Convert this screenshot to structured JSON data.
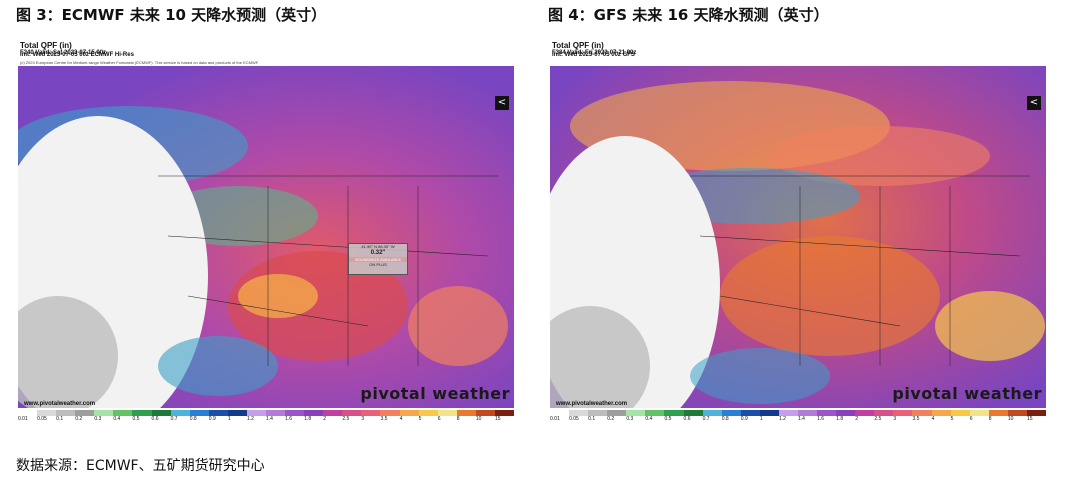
{
  "figures": [
    {
      "title": "图 3：ECMWF 未来 10 天降水预测（英寸）",
      "header_line1": "Total QPF (in)",
      "header_line2": "F240 Valid: Sat 2023-07-15 00z",
      "header_line3": "(c) 2023 European Centre for Medium-range Weather Forecasts (ECMWF). This service is based on data and products of the ECMWF.",
      "init": "Init: Wed 2023-07-05 00z ECMWF Hi-Res",
      "probe_coord": "41.90° N 86.30° W",
      "probe_value": "0.32\"",
      "probe_note": "SOUNDINGS AVAILABLE",
      "probe_note2": "ON PLUS"
    },
    {
      "title": "图 4：GFS 未来 16 天降水预测（英寸）",
      "header_line1": "Total QPF (in)",
      "header_line2": "F384 Valid: Fri 2023-07-21 00z",
      "init": "Init: Wed 2023-07-05 00z GFS"
    }
  ],
  "url": "www.pivotalweather.com",
  "brand": "pivotal weather",
  "scale_labels": [
    "0.01",
    "0.05",
    "0.1",
    "0.2",
    "0.3",
    "0.4",
    "0.5",
    "0.6",
    "0.7",
    "0.8",
    "0.9",
    "1",
    "1.2",
    "1.4",
    "1.6",
    "1.8",
    "2",
    "2.5",
    "3",
    "3.5",
    "4",
    "5",
    "6",
    "8",
    "10",
    "15"
  ],
  "scale_colors": [
    "#ffffff",
    "#d9d9d9",
    "#bdbdbd",
    "#9e9e9e",
    "#a6e3a6",
    "#66c266",
    "#2e9e4f",
    "#1f7a3a",
    "#4fb3d9",
    "#2a7fd4",
    "#1c4fa8",
    "#123a8a",
    "#c79ee8",
    "#b37ad8",
    "#9b55c8",
    "#8a3fb8",
    "#c03fa0",
    "#d8508a",
    "#e8607a",
    "#f08060",
    "#f4a84a",
    "#f7c84a",
    "#f2e28a",
    "#e87a30",
    "#c04a20",
    "#7a2010"
  ],
  "source": "数据来源：ECMWF、五矿期货研究中心"
}
